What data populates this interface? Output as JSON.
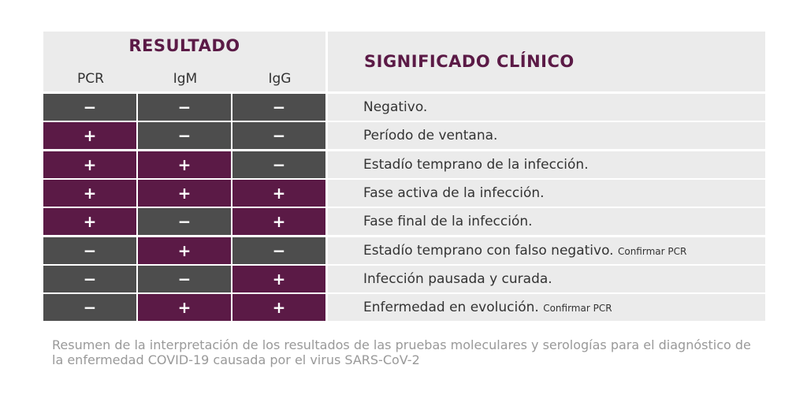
{
  "header": {
    "resultado": "RESULTADO",
    "pcr": "PCR",
    "igm": "IgM",
    "igg": "IgG",
    "significado": "SIGNIFICADO CLÍNICO"
  },
  "rows": [
    {
      "pcr": "−",
      "igm": "−",
      "igg": "−",
      "text": "Negativo.",
      "note": ""
    },
    {
      "pcr": "+",
      "igm": "−",
      "igg": "−",
      "text": "Período de ventana.",
      "note": ""
    },
    {
      "pcr": "+",
      "igm": "+",
      "igg": "−",
      "text": "Estadío temprano de la infección.",
      "note": ""
    },
    {
      "pcr": "+",
      "igm": "+",
      "igg": "+",
      "text": "Fase activa de la infección.",
      "note": ""
    },
    {
      "pcr": "+",
      "igm": "−",
      "igg": "+",
      "text": "Fase final de la infección.",
      "note": ""
    },
    {
      "pcr": "−",
      "igm": "+",
      "igg": "−",
      "text": "Estadío temprano con falso negativo.",
      "note": "Confirmar PCR"
    },
    {
      "pcr": "−",
      "igm": "−",
      "igg": "+",
      "text": "Infección pausada y curada.",
      "note": ""
    },
    {
      "pcr": "−",
      "igm": "+",
      "igg": "+",
      "text": "Enfermedad en evolución.",
      "note": "Confirmar PCR"
    }
  ],
  "caption": "Resumen de la interpretación de los resultados de las pruebas moleculares y serologías para el diagnóstico de la enfermedad COVID-19 causada por el virus SARS-CoV-2",
  "colors": {
    "positive": "#5b1a46",
    "negative": "#4d4d4d",
    "header_bg": "#ebebeb",
    "caption": "#999999"
  }
}
